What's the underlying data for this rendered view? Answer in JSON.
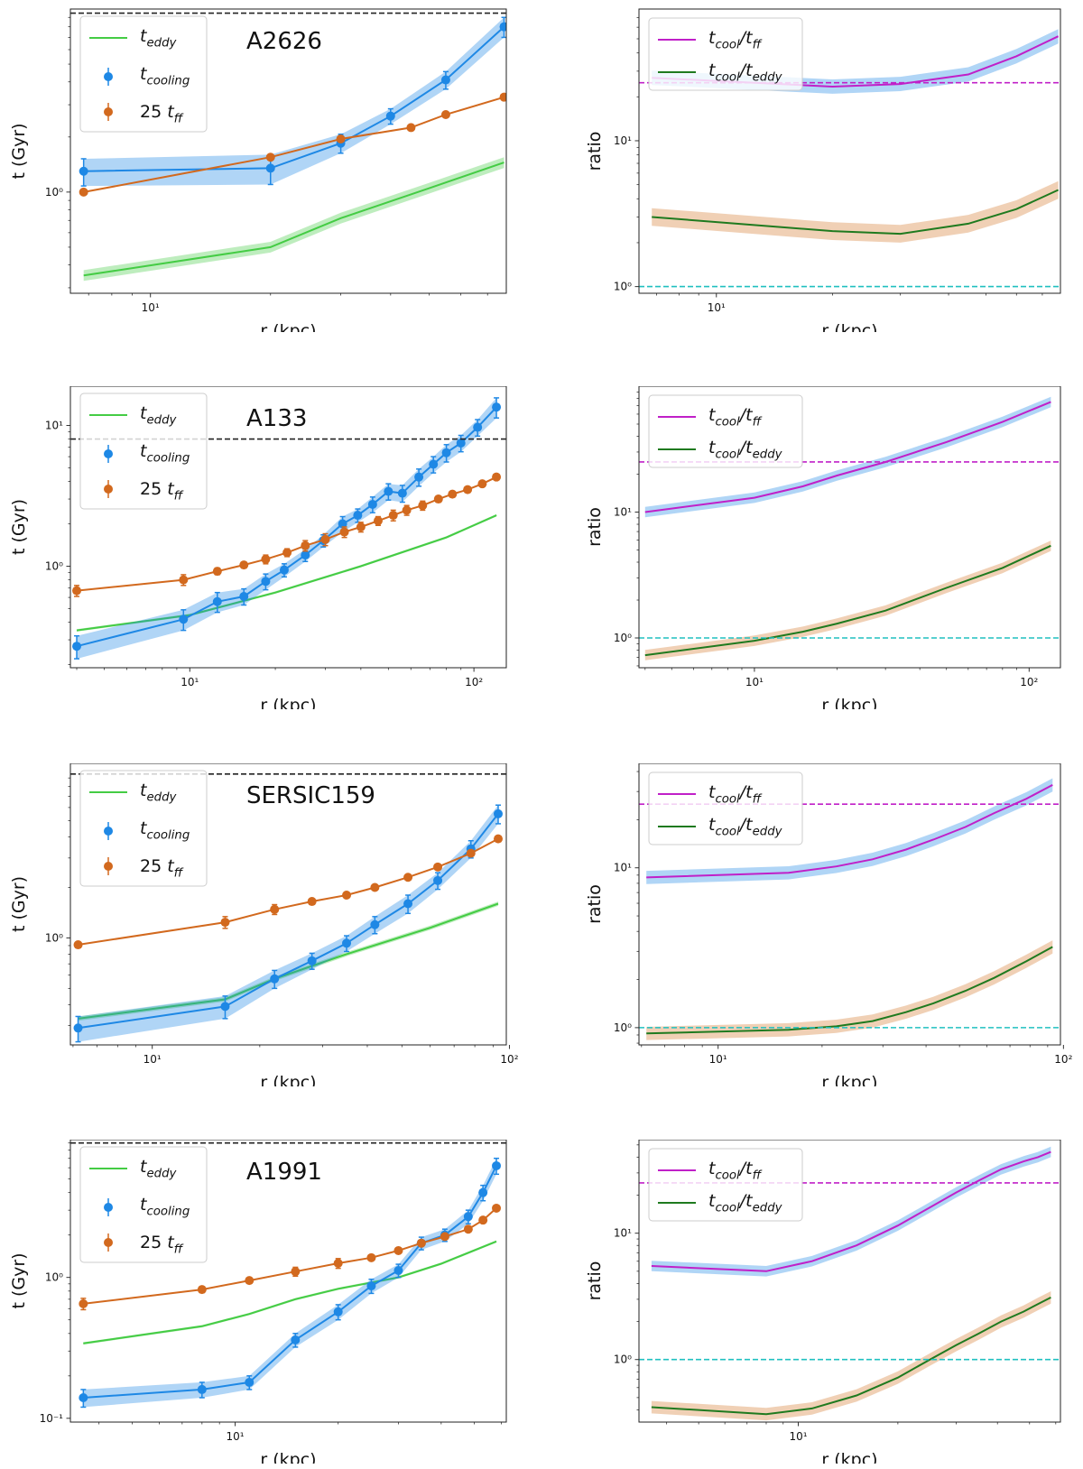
{
  "chart_data": [
    {
      "type": "line",
      "kind": "times",
      "title": "A2626",
      "xlabel": "r (kpc)",
      "ylabel": "t (Gyr)",
      "xlim": [
        6.3,
        78
      ],
      "ylim": [
        0.28,
        10
      ],
      "xticks": [
        {
          "v": 10,
          "label": "10¹"
        }
      ],
      "yticks": [
        {
          "v": 1,
          "label": "10⁰"
        }
      ],
      "hline": 9.5,
      "legend": [
        "t_eddy",
        "t_cooling",
        "25 t_ff"
      ],
      "teddy": {
        "x": [
          6.8,
          20,
          30,
          50,
          77
        ],
        "y": [
          0.35,
          0.5,
          0.72,
          1.05,
          1.45
        ],
        "err": 0.07
      },
      "tcool": {
        "x": [
          6.8,
          20,
          30,
          40,
          55,
          77
        ],
        "y": [
          1.3,
          1.35,
          1.85,
          2.6,
          4.1,
          8.0
        ],
        "err": [
          0.22,
          0.25,
          0.22,
          0.25,
          0.45,
          1.0
        ]
      },
      "tff": {
        "x": [
          6.8,
          20,
          30,
          45,
          55,
          77
        ],
        "y": [
          1.0,
          1.55,
          1.95,
          2.25,
          2.65,
          3.3
        ],
        "err": [
          0.03,
          0.03,
          0.03,
          0.03,
          0.03,
          0.03
        ]
      }
    },
    {
      "type": "line",
      "kind": "ratio",
      "title": "",
      "xlabel": "r (kpc)",
      "ylabel": "ratio",
      "xlim": [
        6.3,
        78
      ],
      "ylim": [
        0.9,
        80
      ],
      "xticks": [
        {
          "v": 10,
          "label": "10¹"
        }
      ],
      "yticks": [
        {
          "v": 1,
          "label": "10⁰"
        },
        {
          "v": 10,
          "label": "10¹"
        }
      ],
      "hline_ff": 25,
      "hline_eddy": 1,
      "legend": [
        "t_cool/t_ff",
        "t_cool/t_eddy"
      ],
      "ratio_ff": {
        "x": [
          6.8,
          20,
          30,
          45,
          60,
          77
        ],
        "y": [
          27,
          23.5,
          24.5,
          28.5,
          38,
          52
        ],
        "err": 0.12
      },
      "ratio_eddy": {
        "x": [
          6.8,
          20,
          30,
          45,
          60,
          77
        ],
        "y": [
          3.0,
          2.4,
          2.3,
          2.7,
          3.4,
          4.6
        ],
        "err": 0.15
      }
    },
    {
      "type": "line",
      "kind": "times",
      "title": "A133",
      "xlabel": "r (kpc)",
      "ylabel": "t (Gyr)",
      "xlim": [
        3.8,
        130
      ],
      "ylim": [
        0.19,
        19
      ],
      "xticks": [
        {
          "v": 10,
          "label": "10¹"
        },
        {
          "v": 100,
          "label": "10²"
        }
      ],
      "yticks": [
        {
          "v": 1,
          "label": "10⁰"
        },
        {
          "v": 10,
          "label": "10¹"
        }
      ],
      "hline": 8,
      "legend": [
        "t_eddy",
        "t_cooling",
        "25 t_ff"
      ],
      "teddy": {
        "x": [
          4,
          10,
          20,
          40,
          80,
          120
        ],
        "y": [
          0.35,
          0.45,
          0.65,
          1.0,
          1.6,
          2.3
        ],
        "err": 0.02
      },
      "tcool": {
        "x": [
          4,
          9.5,
          12.5,
          15.5,
          18.5,
          21.5,
          25.5,
          29.5,
          34.5,
          39,
          44,
          50,
          56,
          64,
          72,
          80,
          90,
          103,
          120
        ],
        "y": [
          0.27,
          0.42,
          0.56,
          0.61,
          0.78,
          0.94,
          1.2,
          1.52,
          2.0,
          2.3,
          2.75,
          3.4,
          3.3,
          4.3,
          5.3,
          6.4,
          7.5,
          9.7,
          13.5
        ],
        "err": [
          0.05,
          0.07,
          0.09,
          0.08,
          0.1,
          0.1,
          0.12,
          0.15,
          0.25,
          0.25,
          0.35,
          0.45,
          0.45,
          0.6,
          0.7,
          0.9,
          1.0,
          1.3,
          2.2
        ]
      },
      "tff": {
        "x": [
          4,
          9.5,
          12.5,
          15.5,
          18.5,
          22,
          25.5,
          30,
          35,
          40,
          46,
          52,
          58,
          66,
          75,
          84,
          95,
          107,
          120
        ],
        "y": [
          0.67,
          0.8,
          0.92,
          1.02,
          1.12,
          1.25,
          1.4,
          1.55,
          1.75,
          1.9,
          2.1,
          2.3,
          2.5,
          2.7,
          3.0,
          3.25,
          3.5,
          3.85,
          4.3
        ],
        "err": [
          0.06,
          0.07,
          0.05,
          0.05,
          0.08,
          0.08,
          0.12,
          0.15,
          0.15,
          0.15,
          0.15,
          0.2,
          0.2,
          0.2,
          0.15,
          0.15,
          0.15,
          0.15,
          0.15
        ]
      }
    },
    {
      "type": "line",
      "kind": "ratio",
      "title": "",
      "xlabel": "r (kpc)",
      "ylabel": "ratio",
      "xlim": [
        3.8,
        130
      ],
      "ylim": [
        0.58,
        100
      ],
      "xticks": [
        {
          "v": 10,
          "label": "10¹"
        },
        {
          "v": 100,
          "label": "10²"
        }
      ],
      "yticks": [
        {
          "v": 1,
          "label": "10⁰"
        },
        {
          "v": 10,
          "label": "10¹"
        }
      ],
      "hline_ff": 25,
      "hline_eddy": 1,
      "legend": [
        "t_cool/t_ff",
        "t_cool/t_eddy"
      ],
      "ratio_ff": {
        "x": [
          4,
          10,
          15,
          20,
          30,
          50,
          80,
          120
        ],
        "y": [
          10,
          13,
          16,
          19.5,
          25,
          36,
          52,
          75
        ],
        "err": 0.1
      },
      "ratio_eddy": {
        "x": [
          4,
          10,
          15,
          20,
          30,
          50,
          80,
          120
        ],
        "y": [
          0.73,
          0.95,
          1.12,
          1.3,
          1.65,
          2.5,
          3.6,
          5.4
        ],
        "err": 0.1
      }
    },
    {
      "type": "line",
      "kind": "times",
      "title": "SERSIC159",
      "xlabel": "r (kpc)",
      "ylabel": "t (Gyr)",
      "xlim": [
        5.9,
        98
      ],
      "ylim": [
        0.23,
        11
      ],
      "xticks": [
        {
          "v": 10,
          "label": "10¹"
        },
        {
          "v": 100,
          "label": "10²"
        }
      ],
      "yticks": [
        {
          "v": 1,
          "label": "10⁰"
        }
      ],
      "hline": 9.5,
      "legend": [
        "t_eddy",
        "t_cooling",
        "25 t_ff"
      ],
      "teddy": {
        "x": [
          6.2,
          16,
          22,
          35,
          60,
          93
        ],
        "y": [
          0.33,
          0.43,
          0.57,
          0.8,
          1.15,
          1.6
        ],
        "err": 0.03
      },
      "tcool": {
        "x": [
          6.2,
          16,
          22,
          28,
          35,
          42,
          52,
          63,
          78,
          93
        ],
        "y": [
          0.29,
          0.39,
          0.57,
          0.73,
          0.93,
          1.2,
          1.6,
          2.2,
          3.4,
          5.5
        ],
        "err": [
          0.05,
          0.06,
          0.07,
          0.08,
          0.1,
          0.14,
          0.2,
          0.25,
          0.4,
          0.7
        ]
      },
      "tff": {
        "x": [
          6.2,
          16,
          22,
          28,
          35,
          42,
          52,
          63,
          78,
          93
        ],
        "y": [
          0.91,
          1.24,
          1.48,
          1.65,
          1.8,
          2.0,
          2.3,
          2.65,
          3.2,
          3.9
        ],
        "err": [
          0.03,
          0.1,
          0.1,
          0.05,
          0.05,
          0.05,
          0.05,
          0.05,
          0.05,
          0.05
        ]
      }
    },
    {
      "type": "line",
      "kind": "ratio",
      "title": "",
      "xlabel": "r (kpc)",
      "ylabel": "ratio",
      "xlim": [
        5.9,
        98
      ],
      "ylim": [
        0.78,
        45
      ],
      "xticks": [
        {
          "v": 10,
          "label": "10¹"
        },
        {
          "v": 100,
          "label": "10²"
        }
      ],
      "yticks": [
        {
          "v": 1,
          "label": "10⁰"
        },
        {
          "v": 10,
          "label": "10¹"
        }
      ],
      "hline_ff": 25,
      "hline_eddy": 1,
      "legend": [
        "t_cool/t_ff",
        "t_cool/t_eddy"
      ],
      "ratio_ff": {
        "x": [
          6.2,
          16,
          22,
          28,
          35,
          42,
          52,
          63,
          78,
          93
        ],
        "y": [
          8.7,
          9.3,
          10.2,
          11.3,
          13.0,
          15.0,
          18.0,
          22.0,
          27.0,
          33.0
        ],
        "err": 0.1
      },
      "ratio_eddy": {
        "x": [
          6.2,
          16,
          22,
          28,
          35,
          42,
          52,
          63,
          78,
          93
        ],
        "y": [
          0.92,
          0.97,
          1.02,
          1.1,
          1.25,
          1.42,
          1.7,
          2.05,
          2.6,
          3.2
        ],
        "err": 0.1
      }
    },
    {
      "type": "line",
      "kind": "times",
      "title": "A1991",
      "xlabel": "r (kpc)",
      "ylabel": "t (Gyr)",
      "xlim": [
        3.3,
        62
      ],
      "ylim": [
        0.094,
        9.5
      ],
      "xticks": [
        {
          "v": 10,
          "label": "10¹"
        }
      ],
      "yticks": [
        {
          "v": 0.1,
          "label": "10⁻¹"
        },
        {
          "v": 1,
          "label": "10⁰"
        }
      ],
      "hline": 9.0,
      "legend": [
        "t_eddy",
        "t_cooling",
        "25 t_ff"
      ],
      "teddy": {
        "x": [
          3.6,
          8,
          11,
          15,
          20,
          30,
          40,
          58
        ],
        "y": [
          0.34,
          0.45,
          0.55,
          0.7,
          0.83,
          1.0,
          1.25,
          1.8
        ],
        "err": 0.02
      },
      "tcool": {
        "x": [
          3.6,
          8,
          11,
          15,
          20,
          25,
          30,
          35,
          41,
          48,
          53,
          58
        ],
        "y": [
          0.14,
          0.16,
          0.18,
          0.36,
          0.57,
          0.87,
          1.12,
          1.75,
          2.0,
          2.7,
          4.0,
          6.2
        ],
        "err": [
          0.02,
          0.02,
          0.02,
          0.04,
          0.07,
          0.1,
          0.12,
          0.18,
          0.2,
          0.3,
          0.5,
          0.8
        ]
      },
      "tff": {
        "x": [
          3.6,
          8,
          11,
          15,
          20,
          25,
          30,
          35,
          41,
          48,
          53,
          58
        ],
        "y": [
          0.65,
          0.82,
          0.95,
          1.1,
          1.26,
          1.38,
          1.55,
          1.75,
          1.95,
          2.2,
          2.55,
          3.1
        ],
        "err": [
          0.06,
          0.04,
          0.04,
          0.08,
          0.1,
          0.05,
          0.05,
          0.08,
          0.08,
          0.05,
          0.05,
          0.05
        ]
      }
    },
    {
      "type": "line",
      "kind": "ratio",
      "title": "",
      "xlabel": "r (kpc)",
      "ylabel": "ratio",
      "xlim": [
        3.3,
        62
      ],
      "ylim": [
        0.32,
        55
      ],
      "xticks": [
        {
          "v": 10,
          "label": "10¹"
        }
      ],
      "yticks": [
        {
          "v": 1,
          "label": "10⁰"
        },
        {
          "v": 10,
          "label": "10¹"
        }
      ],
      "hline_ff": 25,
      "hline_eddy": 1,
      "legend": [
        "t_cool/t_ff",
        "t_cool/t_eddy"
      ],
      "ratio_ff": {
        "x": [
          3.6,
          8,
          11,
          15,
          20,
          25,
          30,
          35,
          41,
          48,
          53,
          58
        ],
        "y": [
          5.5,
          5.0,
          6.0,
          8.0,
          11.5,
          16.0,
          21.0,
          26.0,
          32.0,
          37.0,
          40.0,
          44.0
        ],
        "err": 0.1
      },
      "ratio_eddy": {
        "x": [
          3.6,
          8,
          11,
          15,
          20,
          25,
          30,
          35,
          41,
          48,
          53,
          58
        ],
        "y": [
          0.42,
          0.37,
          0.41,
          0.52,
          0.72,
          1.0,
          1.3,
          1.6,
          2.0,
          2.4,
          2.75,
          3.1
        ],
        "err": 0.12
      }
    }
  ]
}
